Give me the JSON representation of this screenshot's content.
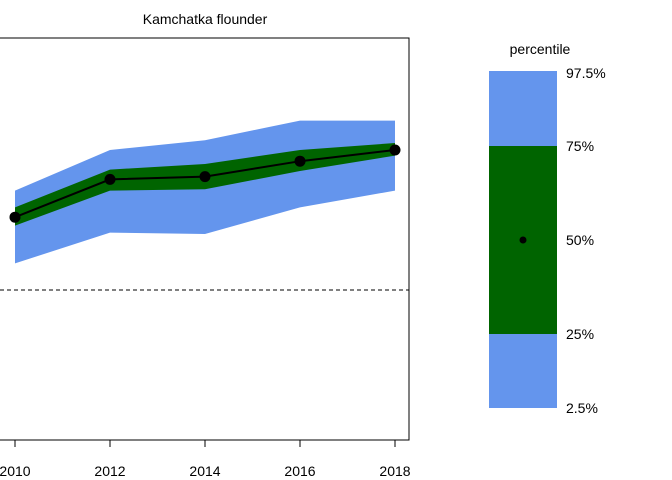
{
  "chart_data": {
    "type": "area",
    "title": "Kamchatka flounder",
    "x": [
      2010,
      2012,
      2014,
      2016,
      2018
    ],
    "series": [
      {
        "name": "2.5%",
        "values": [
          47,
          69,
          68,
          87,
          99
        ]
      },
      {
        "name": "25%",
        "values": [
          74,
          99,
          100,
          113,
          124
        ]
      },
      {
        "name": "50%",
        "values": [
          80,
          107,
          109,
          120,
          128
        ]
      },
      {
        "name": "75%",
        "values": [
          87,
          114,
          118,
          128,
          133
        ]
      },
      {
        "name": "97.5%",
        "values": [
          99,
          128,
          135,
          149,
          149
        ]
      }
    ],
    "reference_line": {
      "value": 28,
      "style": "dashed"
    },
    "xticks": [
      "2010",
      "2012",
      "2014",
      "2016",
      "2018"
    ],
    "xlim": [
      2010,
      2018.4
    ],
    "ylim": [
      -10,
      156
    ],
    "xlabel": "",
    "ylabel": "",
    "legend": {
      "title": "percentile",
      "labels": [
        "97.5%",
        "75%",
        "50%",
        "25%",
        "2.5%"
      ]
    },
    "colors": {
      "outer_band": "#6495ED",
      "inner_band": "#006400",
      "median": "#000000"
    }
  }
}
